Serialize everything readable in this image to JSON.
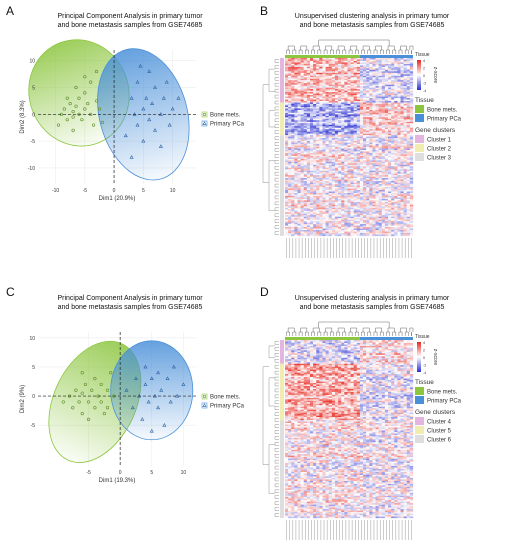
{
  "panels": {
    "A": {
      "letter": "A",
      "title_line1": "Principal Component Analysis in primary tumor",
      "title_line2": "and bone metastasis samples from GSE74685"
    },
    "B": {
      "letter": "B",
      "title_line1": "Unsupervised clustering analysis in primary tumor",
      "title_line2": "and bone metastasis samples from GSE74685"
    },
    "C": {
      "letter": "C",
      "title_line1": "Principal Component Analysis in primary tumor",
      "title_line2": "and bone metastasis samples from GSE74685"
    },
    "D": {
      "letter": "D",
      "title_line1": "Unsupervised clustering analysis in primary tumor",
      "title_line2": "and bone metastasis samples from GSE74685"
    }
  },
  "legends": {
    "pca": {
      "bone": "Bone mets.",
      "primary": "Primary PCa"
    },
    "heatmap_top": {
      "tissue_header": "Tissue",
      "zscore_label": "z-score",
      "scale_ticks": [
        "4",
        "2",
        "0",
        "-2",
        "-4"
      ],
      "tissue_title": "Tissue",
      "tissue_bone": "Bone mets.",
      "tissue_primary": "Primary PCa",
      "gene_title": "Gene clusters",
      "clusters": [
        "Cluster 1",
        "Cluster 2",
        "Cluster 3"
      ]
    },
    "heatmap_bottom": {
      "tissue_header": "Tissue",
      "zscore_label": "z-score",
      "scale_ticks": [
        "4",
        "2",
        "0",
        "-2",
        "-4"
      ],
      "tissue_title": "Tissue",
      "tissue_bone": "Bone mets.",
      "tissue_primary": "Primary PCa",
      "gene_title": "Gene clusters",
      "clusters": [
        "Cluster 4",
        "Cluster 5",
        "Cluster 6"
      ]
    }
  },
  "colors": {
    "bone": "#8cc63f",
    "primary": "#4a90d9",
    "heat_high": "#e8261e",
    "heat_mid": "#ffffff",
    "heat_low": "#2a2fd0",
    "cluster1": "#e3b5e0",
    "cluster2": "#f1ecb0",
    "cluster3": "#dedede",
    "cluster4": "#e3b5e0",
    "cluster5": "#f1ecb0",
    "cluster6": "#dedede"
  },
  "chart_data": [
    {
      "id": "A",
      "type": "scatter",
      "title": "Principal Component Analysis in primary tumor and bone metastasis samples from GSE74685",
      "xlabel": "Dim1 (20.9%)",
      "ylabel": "Dim2 (8.3%)",
      "xlim": [
        -13,
        14
      ],
      "ylim": [
        -13,
        12
      ],
      "xticks": [
        -10,
        -5,
        0,
        5,
        10
      ],
      "yticks": [
        10,
        5,
        0,
        -5,
        -10
      ],
      "series": [
        {
          "name": "Bone mets.",
          "ellipse": {
            "cx": -6,
            "cy": 4,
            "rx": 8.5,
            "ry": 10,
            "rot": -20
          },
          "points": [
            [
              -9,
              0
            ],
            [
              -8.5,
              1
            ],
            [
              -8,
              -1
            ],
            [
              -7.5,
              2
            ],
            [
              -7,
              0.5
            ],
            [
              -7,
              -0.5
            ],
            [
              -6.5,
              1.5
            ],
            [
              -6,
              0
            ],
            [
              -6,
              3
            ],
            [
              -5.5,
              -1
            ],
            [
              -5,
              1
            ],
            [
              -5,
              4
            ],
            [
              -4.5,
              2
            ],
            [
              -4,
              0
            ],
            [
              -4,
              6
            ],
            [
              -3.5,
              -2
            ],
            [
              -3,
              2.5
            ],
            [
              -3,
              8
            ],
            [
              -2.5,
              1
            ],
            [
              -2,
              -1.5
            ],
            [
              -9.5,
              -2
            ],
            [
              -8,
              3
            ],
            [
              -6.5,
              5
            ],
            [
              -5,
              7
            ],
            [
              -7,
              -3
            ]
          ]
        },
        {
          "name": "Primary PCa",
          "ellipse": {
            "cx": 5,
            "cy": 0,
            "rx": 7.5,
            "ry": 12.5,
            "rot": -15
          },
          "points": [
            [
              2,
              -4
            ],
            [
              3,
              3
            ],
            [
              3.5,
              0
            ],
            [
              4,
              -2
            ],
            [
              4,
              6
            ],
            [
              5,
              1
            ],
            [
              5,
              -5
            ],
            [
              5.5,
              3
            ],
            [
              6,
              -1
            ],
            [
              6,
              8
            ],
            [
              6.5,
              2
            ],
            [
              7,
              -3
            ],
            [
              7,
              5
            ],
            [
              8,
              0
            ],
            [
              8,
              -6
            ],
            [
              8.5,
              3
            ],
            [
              9,
              6
            ],
            [
              9.5,
              -2
            ],
            [
              10,
              1
            ],
            [
              3,
              -8
            ],
            [
              11,
              3
            ],
            [
              4.5,
              9
            ]
          ]
        }
      ]
    },
    {
      "id": "C",
      "type": "scatter",
      "title": "Principal Component Analysis in primary tumor and bone metastasis samples from GSE74685",
      "xlabel": "Dim1 (19.3%)",
      "ylabel": "Dim2 (9%)",
      "xlim": [
        -13,
        12
      ],
      "ylim": [
        -12,
        11
      ],
      "xticks": [
        -5,
        0,
        5,
        10
      ],
      "yticks": [
        10,
        5,
        0,
        -5
      ],
      "series": [
        {
          "name": "Bone mets.",
          "ellipse": {
            "cx": -4,
            "cy": -1,
            "rx": 6.5,
            "ry": 11,
            "rot": 25
          },
          "points": [
            [
              -8,
              0
            ],
            [
              -7.5,
              -2
            ],
            [
              -7,
              1
            ],
            [
              -6.5,
              -1
            ],
            [
              -6,
              0.5
            ],
            [
              -6,
              -3
            ],
            [
              -5.5,
              2
            ],
            [
              -5,
              -1
            ],
            [
              -5,
              -4
            ],
            [
              -4.5,
              1
            ],
            [
              -4,
              -2
            ],
            [
              -4,
              3
            ],
            [
              -3.5,
              0
            ],
            [
              -3,
              -1
            ],
            [
              -3,
              2
            ],
            [
              -2.5,
              -3
            ],
            [
              -2,
              1
            ],
            [
              -2,
              -2
            ],
            [
              -1.5,
              4
            ],
            [
              -1,
              0
            ],
            [
              -9,
              -1
            ],
            [
              -6,
              4
            ]
          ]
        },
        {
          "name": "Primary PCa",
          "ellipse": {
            "cx": 5,
            "cy": 1,
            "rx": 6.5,
            "ry": 8.5,
            "rot": 0
          },
          "points": [
            [
              1,
              1
            ],
            [
              2,
              -2
            ],
            [
              2.5,
              3
            ],
            [
              3,
              0
            ],
            [
              3.5,
              -4
            ],
            [
              4,
              2
            ],
            [
              4,
              5
            ],
            [
              4.5,
              -1
            ],
            [
              5,
              3
            ],
            [
              5,
              -6
            ],
            [
              5.5,
              0
            ],
            [
              6,
              4
            ],
            [
              6,
              -2
            ],
            [
              6.5,
              1
            ],
            [
              7,
              -5
            ],
            [
              7.5,
              3
            ],
            [
              8,
              -1
            ],
            [
              8.5,
              5
            ],
            [
              9,
              0
            ],
            [
              10,
              2
            ]
          ]
        }
      ]
    },
    {
      "id": "B",
      "type": "heatmap",
      "title": "Unsupervised clustering analysis in primary tumor and bone metastasis samples from GSE74685",
      "columns": {
        "bone_count": 24,
        "primary_count": 17
      },
      "color_scale": {
        "min": -4,
        "max": 4
      },
      "row_clusters": [
        {
          "name": "Cluster 1",
          "rows": 30,
          "bone_trend": 1.2,
          "primary_trend": -0.6
        },
        {
          "name": "Cluster 2",
          "rows": 22,
          "bone_trend": -1.6,
          "primary_trend": 0.8
        },
        {
          "name": "Cluster 3",
          "rows": 68,
          "bone_trend": 0.1,
          "primary_trend": 0.0
        }
      ]
    },
    {
      "id": "D",
      "type": "heatmap",
      "title": "Unsupervised clustering analysis in primary tumor and bone metastasis samples from GSE74685",
      "columns": {
        "bone_count": 24,
        "primary_count": 17
      },
      "color_scale": {
        "min": -4,
        "max": 4
      },
      "row_clusters": [
        {
          "name": "Cluster 4",
          "rows": 16,
          "bone_trend": -0.5,
          "primary_trend": 0.6
        },
        {
          "name": "Cluster 5",
          "rows": 38,
          "bone_trend": 1.5,
          "primary_trend": -0.4
        },
        {
          "name": "Cluster 6",
          "rows": 66,
          "bone_trend": 0.2,
          "primary_trend": -0.1
        }
      ]
    }
  ]
}
